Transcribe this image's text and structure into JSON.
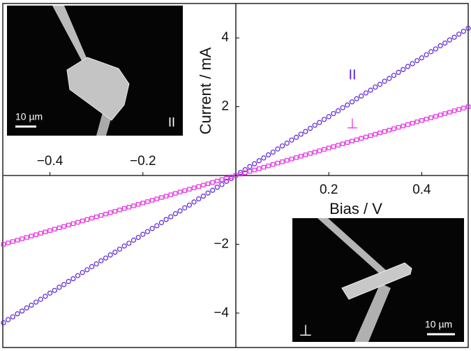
{
  "chart_data": {
    "type": "scatter",
    "x_label": "Bias / V",
    "y_label": "Current / mA",
    "xlim": [
      -0.5,
      0.5
    ],
    "ylim": [
      -5,
      5
    ],
    "xticks": [
      {
        "value": -0.4,
        "label": "−0.4"
      },
      {
        "value": -0.2,
        "label": "−0.2"
      },
      0.2,
      0.4
    ],
    "yticks": [
      {
        "value": -4,
        "label": "−4"
      },
      {
        "value": -2,
        "label": "−2"
      },
      2,
      4
    ],
    "x": [
      -0.5,
      -0.49,
      -0.48,
      -0.47,
      -0.46,
      -0.45,
      -0.44,
      -0.43,
      -0.42,
      -0.41,
      -0.4,
      -0.39,
      -0.38,
      -0.37,
      -0.36,
      -0.35,
      -0.34,
      -0.33,
      -0.32,
      -0.31,
      -0.3,
      -0.29,
      -0.28,
      -0.27,
      -0.26,
      -0.25,
      -0.24,
      -0.23,
      -0.22,
      -0.21,
      -0.2,
      -0.19,
      -0.18,
      -0.17,
      -0.16,
      -0.15,
      -0.14,
      -0.13,
      -0.12,
      -0.11,
      -0.1,
      -0.09,
      -0.08,
      -0.07,
      -0.06,
      -0.05,
      -0.04,
      -0.03,
      -0.02,
      -0.01,
      0,
      0.01,
      0.02,
      0.03,
      0.04,
      0.05,
      0.06,
      0.07,
      0.08,
      0.09,
      0.1,
      0.11,
      0.12,
      0.13,
      0.14,
      0.15,
      0.16,
      0.17,
      0.18,
      0.19,
      0.2,
      0.21,
      0.22,
      0.23,
      0.24,
      0.25,
      0.26,
      0.27,
      0.28,
      0.29,
      0.3,
      0.31,
      0.32,
      0.33,
      0.34,
      0.35,
      0.36,
      0.37,
      0.38,
      0.39,
      0.4,
      0.41,
      0.42,
      0.43,
      0.44,
      0.45,
      0.46,
      0.47,
      0.48,
      0.49,
      0.5
    ],
    "series": [
      {
        "name": "II",
        "color": "#5b22d8",
        "marker": "circle",
        "values": [
          -4.28,
          -4.19,
          -4.11,
          -4.02,
          -3.94,
          -3.85,
          -3.77,
          -3.68,
          -3.6,
          -3.51,
          -3.42,
          -3.34,
          -3.25,
          -3.17,
          -3.08,
          -3.0,
          -2.91,
          -2.82,
          -2.74,
          -2.65,
          -2.57,
          -2.48,
          -2.4,
          -2.31,
          -2.23,
          -2.14,
          -2.05,
          -1.97,
          -1.88,
          -1.8,
          -1.71,
          -1.63,
          -1.54,
          -1.46,
          -1.37,
          -1.28,
          -1.2,
          -1.11,
          -1.03,
          -0.94,
          -0.86,
          -0.77,
          -0.68,
          -0.6,
          -0.51,
          -0.43,
          -0.34,
          -0.26,
          -0.17,
          -0.09,
          0,
          0.09,
          0.17,
          0.26,
          0.34,
          0.43,
          0.51,
          0.6,
          0.68,
          0.77,
          0.86,
          0.94,
          1.03,
          1.11,
          1.2,
          1.28,
          1.37,
          1.46,
          1.54,
          1.63,
          1.71,
          1.8,
          1.88,
          1.97,
          2.05,
          2.14,
          2.23,
          2.31,
          2.4,
          2.48,
          2.57,
          2.65,
          2.74,
          2.82,
          2.91,
          3.0,
          3.08,
          3.17,
          3.25,
          3.34,
          3.42,
          3.51,
          3.6,
          3.68,
          3.77,
          3.85,
          3.94,
          4.02,
          4.11,
          4.19,
          4.28
        ]
      },
      {
        "name": "⊥",
        "color": "#e62ee0",
        "marker": "square",
        "values": [
          -2.0,
          -1.96,
          -1.92,
          -1.88,
          -1.84,
          -1.8,
          -1.76,
          -1.72,
          -1.68,
          -1.64,
          -1.6,
          -1.56,
          -1.52,
          -1.48,
          -1.44,
          -1.4,
          -1.36,
          -1.32,
          -1.28,
          -1.24,
          -1.2,
          -1.16,
          -1.12,
          -1.08,
          -1.04,
          -1.0,
          -0.96,
          -0.92,
          -0.88,
          -0.84,
          -0.8,
          -0.76,
          -0.72,
          -0.68,
          -0.64,
          -0.6,
          -0.56,
          -0.52,
          -0.48,
          -0.44,
          -0.4,
          -0.36,
          -0.32,
          -0.28,
          -0.24,
          -0.2,
          -0.16,
          -0.12,
          -0.08,
          -0.04,
          0,
          0.04,
          0.08,
          0.12,
          0.16,
          0.2,
          0.24,
          0.28,
          0.32,
          0.36,
          0.4,
          0.44,
          0.48,
          0.52,
          0.56,
          0.6,
          0.64,
          0.68,
          0.72,
          0.76,
          0.8,
          0.84,
          0.88,
          0.92,
          0.96,
          1.0,
          1.04,
          1.08,
          1.12,
          1.16,
          1.2,
          1.24,
          1.28,
          1.32,
          1.36,
          1.4,
          1.44,
          1.48,
          1.52,
          1.56,
          1.6,
          1.64,
          1.68,
          1.72,
          1.76,
          1.8,
          1.84,
          1.88,
          1.92,
          1.96,
          2.0
        ]
      }
    ],
    "insets": [
      {
        "scale_bar": "10 µm",
        "label": "II"
      },
      {
        "scale_bar": "10 µm",
        "label": "⊥"
      }
    ]
  }
}
